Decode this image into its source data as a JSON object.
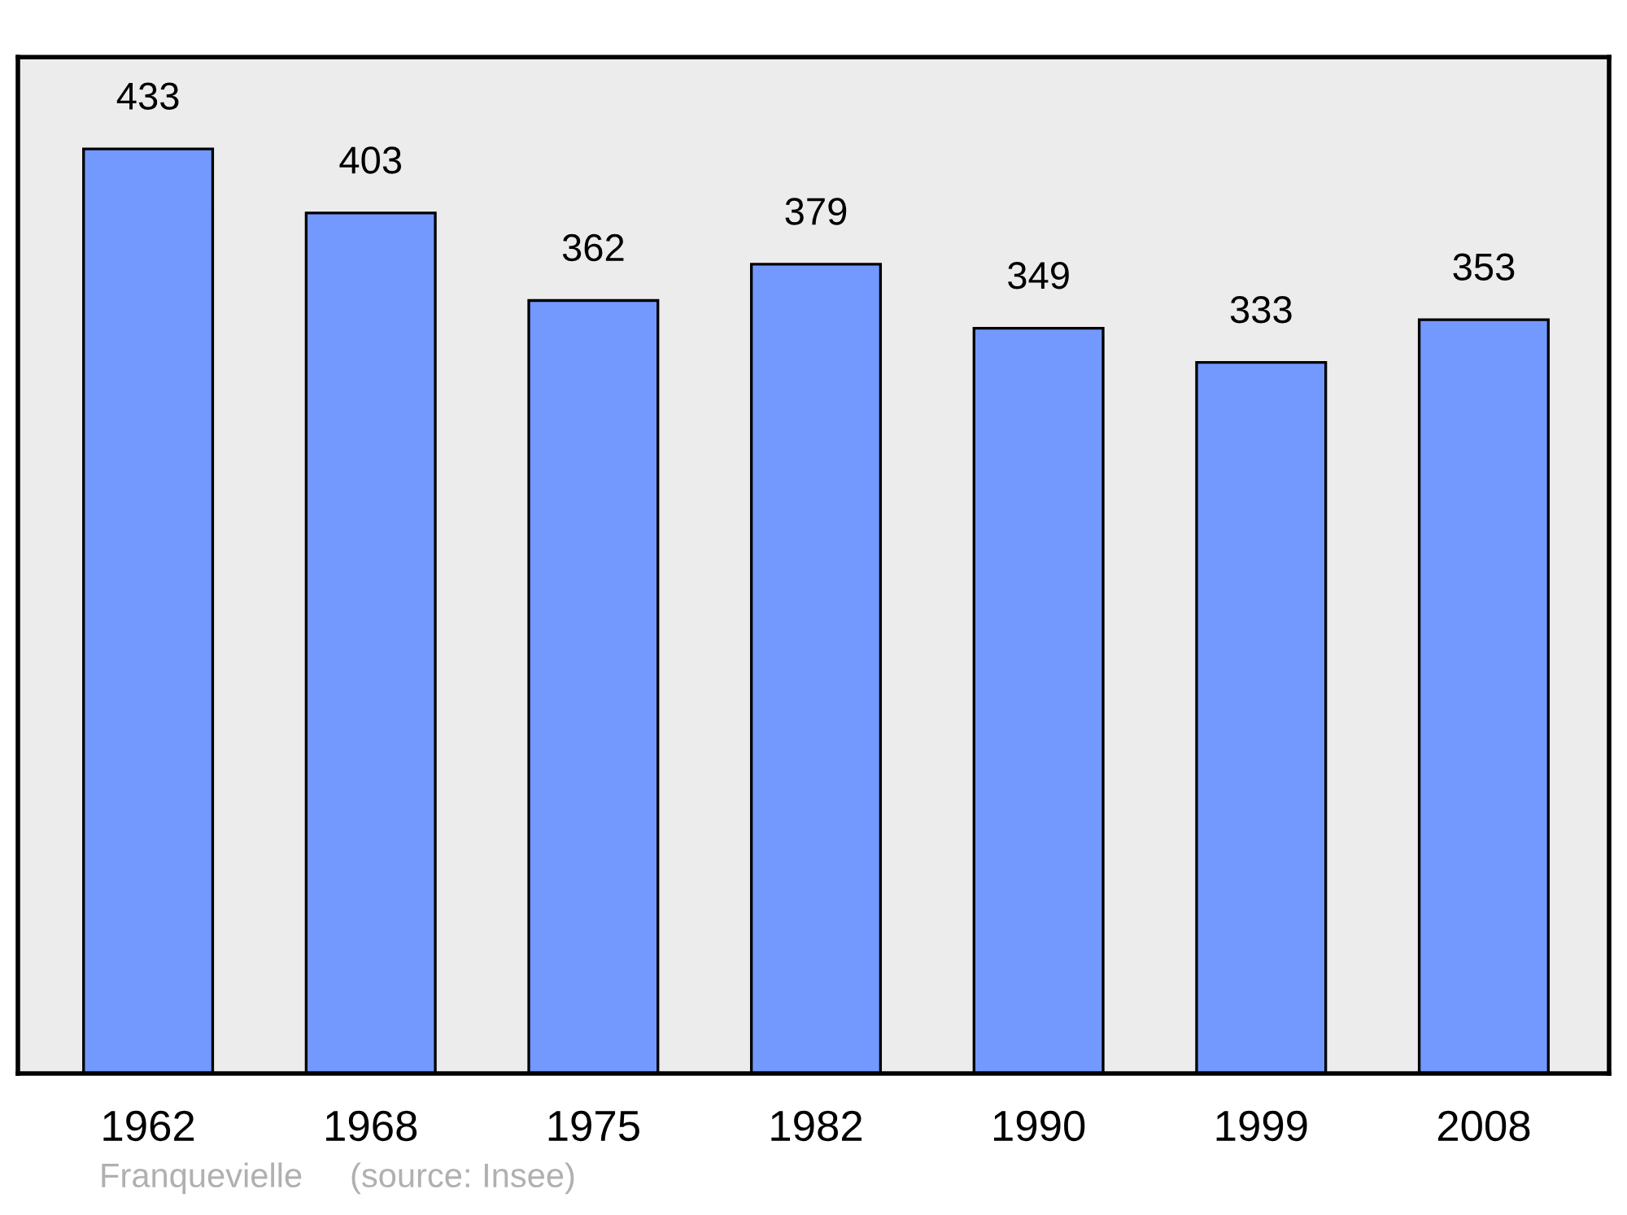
{
  "chart_data": {
    "type": "bar",
    "categories": [
      "1962",
      "1968",
      "1975",
      "1982",
      "1990",
      "1999",
      "2008"
    ],
    "values": [
      433,
      403,
      362,
      379,
      349,
      333,
      353
    ],
    "color": "#7399ff",
    "ylim": [
      0,
      476
    ],
    "tick_labels": "x",
    "data_labels": true,
    "grid": false,
    "legend": false,
    "annotations": [
      "Franquevielle",
      "(source: Insee)"
    ]
  }
}
